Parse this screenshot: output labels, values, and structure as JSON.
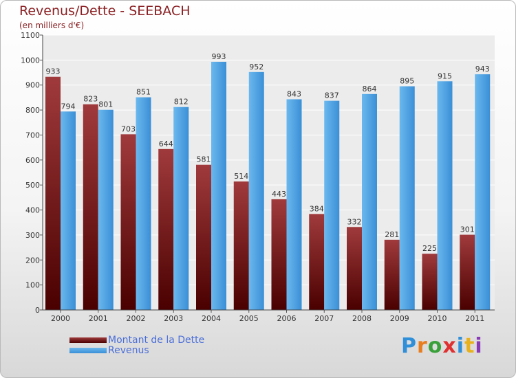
{
  "chart_data": {
    "type": "bar",
    "title": "Revenus/Dette - SEEBACH",
    "subtitle": "(en milliers d'€)",
    "categories": [
      "2000",
      "2001",
      "2002",
      "2003",
      "2004",
      "2005",
      "2006",
      "2007",
      "2008",
      "2009",
      "2010",
      "2011"
    ],
    "series": [
      {
        "name": "Montant de la Dette",
        "color": "#8b1a1a",
        "values": [
          933,
          823,
          703,
          644,
          581,
          514,
          443,
          384,
          332,
          281,
          225,
          301
        ]
      },
      {
        "name": "Revenus",
        "color": "#4aa3e6",
        "values": [
          794,
          801,
          851,
          812,
          993,
          952,
          843,
          837,
          864,
          895,
          915,
          943
        ]
      }
    ],
    "ylim": [
      0,
      1100
    ],
    "yticks": [
      "0",
      "100",
      "200",
      "300",
      "400",
      "500",
      "600",
      "700",
      "800",
      "900",
      "1000",
      "1100"
    ],
    "grid": true,
    "legend_position": "bottom-left"
  },
  "logo": {
    "text": "Proxiti"
  }
}
